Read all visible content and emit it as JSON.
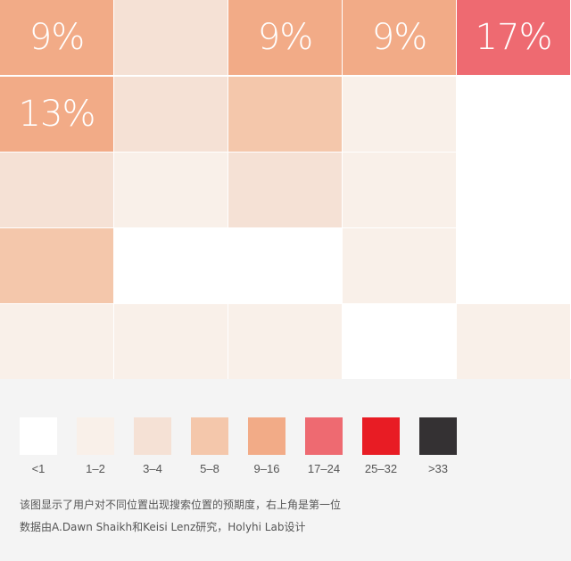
{
  "chart_data": {
    "type": "heatmap",
    "rows": 5,
    "cols": 5,
    "cells": [
      [
        {
          "level": 4,
          "label": "9%"
        },
        {
          "level": 2,
          "label": ""
        },
        {
          "level": 4,
          "label": "9%"
        },
        {
          "level": 4,
          "label": "9%"
        },
        {
          "level": 5,
          "label": "17%"
        }
      ],
      [
        {
          "level": 4,
          "label": "13%"
        },
        {
          "level": 2,
          "label": ""
        },
        {
          "level": 3,
          "label": ""
        },
        {
          "level": 1,
          "label": ""
        },
        {
          "level": 0,
          "label": ""
        }
      ],
      [
        {
          "level": 2,
          "label": ""
        },
        {
          "level": 1,
          "label": ""
        },
        {
          "level": 2,
          "label": ""
        },
        {
          "level": 1,
          "label": ""
        },
        {
          "level": 0,
          "label": ""
        }
      ],
      [
        {
          "level": 3,
          "label": ""
        },
        {
          "level": 0,
          "label": ""
        },
        {
          "level": 0,
          "label": ""
        },
        {
          "level": 1,
          "label": ""
        },
        {
          "level": 0,
          "label": ""
        }
      ],
      [
        {
          "level": 1,
          "label": ""
        },
        {
          "level": 1,
          "label": ""
        },
        {
          "level": 1,
          "label": ""
        },
        {
          "level": 0,
          "label": ""
        },
        {
          "level": 1,
          "label": ""
        }
      ]
    ],
    "levels": [
      {
        "range": "<1",
        "color": "#ffffff"
      },
      {
        "range": "1–2",
        "color": "#f9f0e9"
      },
      {
        "range": "3–4",
        "color": "#f5e1d5"
      },
      {
        "range": "5–8",
        "color": "#f4c7ab"
      },
      {
        "range": "9–16",
        "color": "#f2ab87"
      },
      {
        "range": "17–24",
        "color": "#ee6a71"
      },
      {
        "range": "25–32",
        "color": "#e81c24"
      },
      {
        "range": ">33",
        "color": "#343133"
      }
    ]
  },
  "captions": {
    "line1": "该图显示了用户对不同位置出现搜索位置的预期度，右上角是第一位",
    "line2": "数据由A.Dawn Shaikh和Keisi Lenz研究，Holyhi Lab设计"
  }
}
